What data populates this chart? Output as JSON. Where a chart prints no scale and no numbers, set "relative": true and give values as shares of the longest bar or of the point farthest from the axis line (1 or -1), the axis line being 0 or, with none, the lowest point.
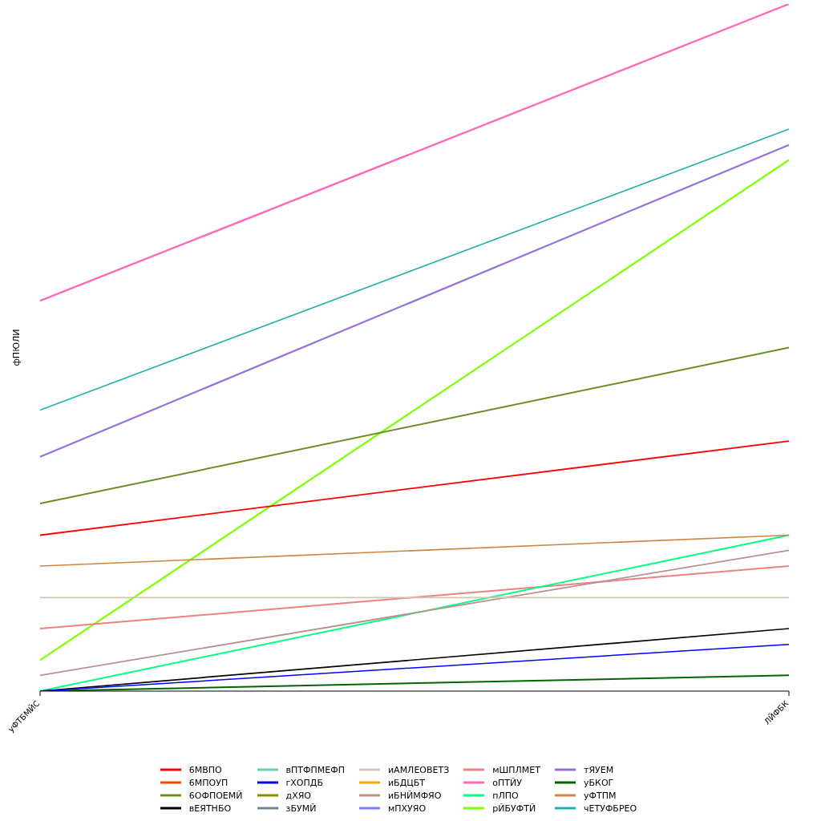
{
  "chart_data": {
    "type": "line",
    "ylabel": "фПЮЛИ",
    "categories": [
      "уФТБМЙС",
      "ЛЙФБК"
    ],
    "relative": true,
    "legend": "bottom",
    "marker": "none",
    "line_style": "solid",
    "series": [
      {
        "name": "оПТЙУ",
        "color": "#ff69b4",
        "values": [
          0.568,
          1
        ]
      },
      {
        "name": "мПХУЯО",
        "color": "#7b7bff",
        "values": [
          null,
          null
        ]
      },
      {
        "name": "зБУМЙ",
        "color": "#708090",
        "values": [
          null,
          null
        ]
      },
      {
        "name": "иБДЦБТ",
        "color": "#ffa500",
        "values": [
          null,
          null
        ]
      },
      {
        "name": "рЙБУФТЙ",
        "color": "#7fff00",
        "values": [
          0.045,
          0.773
        ]
      },
      {
        "name": "тЯУЕМ",
        "color": "#9370db",
        "values": [
          0.341,
          0.795
        ]
      },
      {
        "name": "дХЯО",
        "color": "#8b8b00",
        "values": [
          null,
          null
        ]
      },
      {
        "name": "уБКОГ",
        "color": "#006400",
        "values": [
          0,
          0.023
        ]
      },
      {
        "name": "мШПЛМЕТ",
        "color": "#f08080",
        "values": [
          0.091,
          0.182
        ]
      },
      {
        "name": "6ОФПОЕМЙ",
        "color": "#6b8e23",
        "values": [
          0.273,
          0.5
        ]
      },
      {
        "name": "пЛПО",
        "color": "#00ff7f",
        "values": [
          0,
          0.227
        ]
      },
      {
        "name": "6МВПО",
        "color": "#ff0000",
        "values": [
          0.227,
          0.364
        ]
      },
      {
        "name": "иБНЙМФЯО",
        "color": "#bc8f8f",
        "values": [
          0.023,
          0.205
        ]
      },
      {
        "name": "6МПОУП",
        "color": "#ff4500",
        "values": [
          null,
          null
        ]
      },
      {
        "name": "вЕЯТНБО",
        "color": "#000000",
        "values": [
          0,
          0.091
        ]
      },
      {
        "name": "иАМЛЕОВЕТЗ",
        "color": "#d2c4b0",
        "values": [
          0.136,
          0.136
        ]
      },
      {
        "name": "чЕТУФБРЕО",
        "color": "#20b2aa",
        "values": [
          0.409,
          0.818
        ]
      },
      {
        "name": "уФТПМ",
        "color": "#cd853f",
        "values": [
          0.182,
          0.227
        ]
      },
      {
        "name": "гХОПДБ",
        "color": "#0000ff",
        "values": [
          0,
          0.068
        ]
      },
      {
        "name": "вПТФПМЕФП",
        "color": "#66cdaa",
        "values": [
          null,
          null
        ]
      }
    ]
  }
}
